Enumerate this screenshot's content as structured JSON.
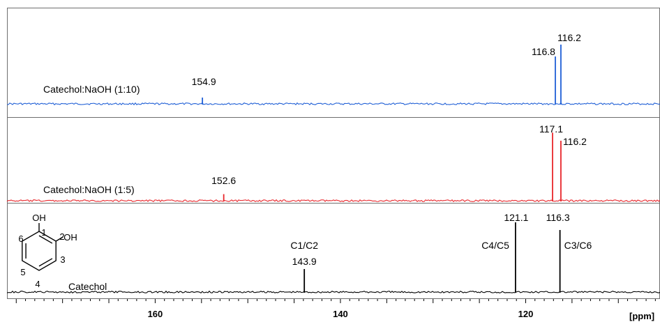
{
  "chart_data": {
    "type": "line",
    "xlabel": "[ppm]",
    "x_direction": "decreasing",
    "xlim": [
      176.0,
      105.5
    ],
    "x_ticks": [
      160,
      140,
      120
    ],
    "grid": false,
    "legend": "none",
    "series": [
      {
        "name": "Catechol:NaOH (1:10)",
        "color": "#1f5fd6",
        "peaks": [
          {
            "ppm": 154.9,
            "intensity": 0.09,
            "label": "154.9"
          },
          {
            "ppm": 116.8,
            "intensity": 0.68,
            "label": "116.8"
          },
          {
            "ppm": 116.2,
            "intensity": 0.85,
            "label": "116.2"
          }
        ]
      },
      {
        "name": "Catechol:NaOH (1:5)",
        "color": "#e8262b",
        "peaks": [
          {
            "ppm": 152.6,
            "intensity": 0.09,
            "label": "152.6"
          },
          {
            "ppm": 117.1,
            "intensity": 0.93,
            "label": "117.1"
          },
          {
            "ppm": 116.2,
            "intensity": 0.82,
            "label": "116.2"
          }
        ]
      },
      {
        "name": "Catechol",
        "color": "#000000",
        "peaks": [
          {
            "ppm": 143.9,
            "intensity": 0.33,
            "label": "143.9",
            "assignment": "C1/C2"
          },
          {
            "ppm": 121.1,
            "intensity": 1.0,
            "label": "121.1",
            "assignment": "C4/C5"
          },
          {
            "ppm": 116.3,
            "intensity": 0.89,
            "label": "116.3",
            "assignment": "C3/C6"
          }
        ]
      }
    ],
    "structure": {
      "substituents": [
        "OH",
        "OH"
      ],
      "ring_numbers": [
        "1",
        "2",
        "3",
        "4",
        "5",
        "6"
      ]
    }
  }
}
